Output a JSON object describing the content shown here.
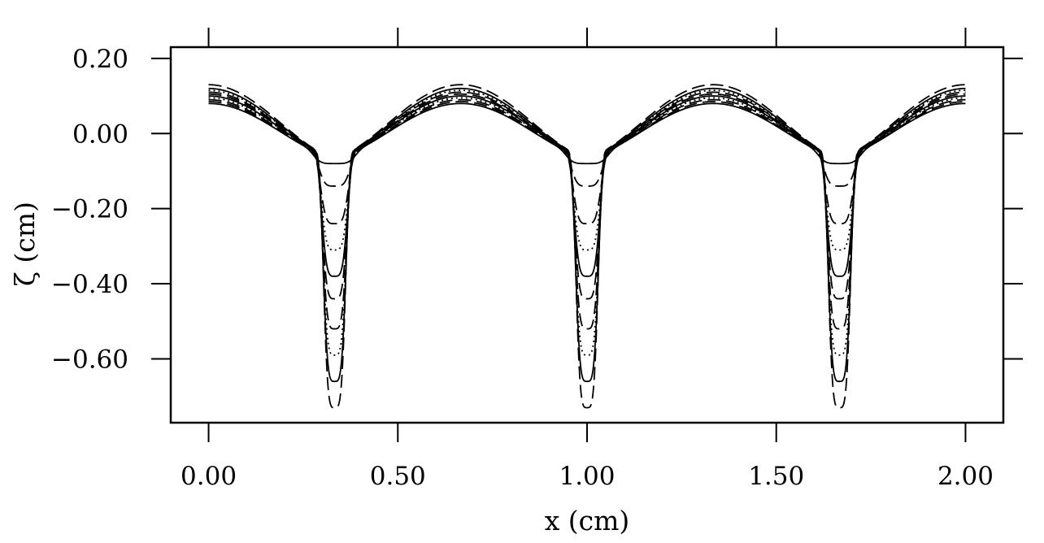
{
  "chart_data": {
    "type": "line",
    "title": "",
    "xlabel": "x (cm)",
    "ylabel": "ζ (cm)",
    "xlim": [
      -0.1,
      2.1
    ],
    "ylim": [
      -0.77,
      0.23
    ],
    "xticks": [
      0.0,
      0.5,
      1.0,
      1.5,
      2.0
    ],
    "xtick_labels": [
      "0.00",
      "0.50",
      "1.00",
      "1.50",
      "2.00"
    ],
    "yticks": [
      0.2,
      0.0,
      -0.2,
      -0.4,
      -0.6
    ],
    "ytick_labels": [
      "0.20",
      "0.00",
      "−0.20",
      "−0.40",
      "−0.60"
    ],
    "grid": false,
    "legend": "none",
    "period": 0.6667,
    "trough_centers": [
      0.333,
      1.0,
      1.667
    ],
    "series": [
      {
        "style": "solid",
        "peak": 0.08,
        "trough": -0.08,
        "trough_half_width": 0.055
      },
      {
        "style": "dashed",
        "peak": 0.085,
        "trough": -0.14,
        "trough_half_width": 0.044
      },
      {
        "style": "dashed",
        "peak": 0.09,
        "trough": -0.24,
        "trough_half_width": 0.04
      },
      {
        "style": "dotted",
        "peak": 0.095,
        "trough": -0.31,
        "trough_half_width": 0.038
      },
      {
        "style": "solid",
        "peak": 0.1,
        "trough": -0.38,
        "trough_half_width": 0.037
      },
      {
        "style": "dashed",
        "peak": 0.105,
        "trough": -0.44,
        "trough_half_width": 0.036
      },
      {
        "style": "dashed",
        "peak": 0.11,
        "trough": -0.52,
        "trough_half_width": 0.035
      },
      {
        "style": "dotted",
        "peak": 0.115,
        "trough": -0.59,
        "trough_half_width": 0.034
      },
      {
        "style": "solid",
        "peak": 0.12,
        "trough": -0.66,
        "trough_half_width": 0.033
      },
      {
        "style": "dashed",
        "peak": 0.13,
        "trough": -0.73,
        "trough_half_width": 0.032
      }
    ]
  }
}
